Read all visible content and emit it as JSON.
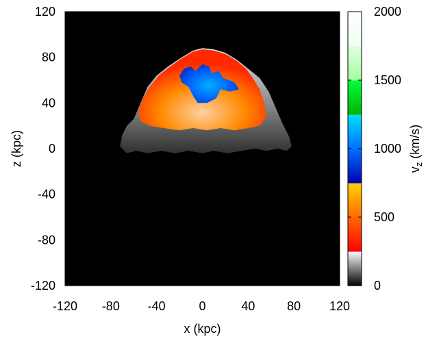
{
  "chart_data": {
    "type": "heatmap",
    "title": "",
    "xlabel": "x (kpc)",
    "ylabel": "z (kpc)",
    "xlim": [
      -120,
      120
    ],
    "ylim": [
      -120,
      120
    ],
    "xticks": [
      -120,
      -80,
      -40,
      0,
      40,
      80,
      120
    ],
    "yticks": [
      -120,
      -80,
      -40,
      0,
      40,
      80,
      120
    ],
    "colorbar": {
      "label_main": "v",
      "label_sub": "z",
      "label_unit": " (km/s)",
      "range": [
        0,
        2000
      ],
      "ticks": [
        0,
        500,
        1000,
        1500,
        2000
      ],
      "bands": [
        {
          "from": 0,
          "to": 250,
          "colors": [
            "#000000",
            "#ffffff"
          ]
        },
        {
          "from": 250,
          "to": 500,
          "colors": [
            "#ff0000",
            "#ff6a00"
          ]
        },
        {
          "from": 500,
          "to": 750,
          "colors": [
            "#ff6a00",
            "#ffd400"
          ]
        },
        {
          "from": 750,
          "to": 1000,
          "colors": [
            "#0000b4",
            "#0070ff"
          ]
        },
        {
          "from": 1000,
          "to": 1250,
          "colors": [
            "#0070ff",
            "#00e0ff"
          ]
        },
        {
          "from": 1250,
          "to": 1500,
          "colors": [
            "#00b400",
            "#00ff40"
          ]
        },
        {
          "from": 1500,
          "to": 1750,
          "colors": [
            "#a0ffa0",
            "#e0ffe0"
          ]
        },
        {
          "from": 1750,
          "to": 2000,
          "colors": [
            "#f0fff0",
            "#ffffff"
          ]
        }
      ]
    },
    "regions": [
      {
        "name": "background",
        "color": "#000000"
      },
      {
        "name": "shell-edge",
        "color": "#aaaaaa",
        "vz_range": [
          0,
          250
        ],
        "outline": [
          [
            -72,
            2
          ],
          [
            -70,
            12
          ],
          [
            -66,
            20
          ],
          [
            -60,
            26
          ],
          [
            -54,
            40
          ],
          [
            -48,
            54
          ],
          [
            -40,
            64
          ],
          [
            -30,
            72
          ],
          [
            -18,
            80
          ],
          [
            -8,
            86
          ],
          [
            0,
            88
          ],
          [
            10,
            87
          ],
          [
            20,
            84
          ],
          [
            30,
            78
          ],
          [
            40,
            70
          ],
          [
            50,
            62
          ],
          [
            58,
            50
          ],
          [
            64,
            36
          ],
          [
            70,
            22
          ],
          [
            76,
            10
          ],
          [
            78,
            2
          ],
          [
            74,
            -2
          ],
          [
            66,
            0
          ],
          [
            56,
            -2
          ],
          [
            46,
            0
          ],
          [
            34,
            -2
          ],
          [
            22,
            -4
          ],
          [
            10,
            -2
          ],
          [
            0,
            -4
          ],
          [
            -12,
            -2
          ],
          [
            -24,
            -4
          ],
          [
            -36,
            -2
          ],
          [
            -48,
            -4
          ],
          [
            -58,
            -2
          ],
          [
            -66,
            -4
          ]
        ]
      },
      {
        "name": "shell-interior",
        "color": "#ff5a00",
        "vz_range": [
          300,
          700
        ],
        "outline": [
          [
            -56,
            32
          ],
          [
            -52,
            44
          ],
          [
            -46,
            54
          ],
          [
            -38,
            64
          ],
          [
            -28,
            72
          ],
          [
            -18,
            79
          ],
          [
            -8,
            85
          ],
          [
            0,
            87
          ],
          [
            10,
            86
          ],
          [
            20,
            83
          ],
          [
            30,
            77
          ],
          [
            38,
            70
          ],
          [
            44,
            62
          ],
          [
            50,
            52
          ],
          [
            54,
            40
          ],
          [
            56,
            28
          ],
          [
            50,
            20
          ],
          [
            40,
            18
          ],
          [
            28,
            16
          ],
          [
            16,
            18
          ],
          [
            4,
            16
          ],
          [
            -8,
            18
          ],
          [
            -20,
            16
          ],
          [
            -34,
            18
          ],
          [
            -46,
            20
          ],
          [
            -54,
            24
          ]
        ]
      },
      {
        "name": "central-jet",
        "color": "#0060ff",
        "vz_range": [
          800,
          1200
        ],
        "outline": [
          [
            -20,
            64
          ],
          [
            -16,
            70
          ],
          [
            -10,
            72
          ],
          [
            -6,
            68
          ],
          [
            0,
            74
          ],
          [
            6,
            72
          ],
          [
            8,
            66
          ],
          [
            14,
            68
          ],
          [
            18,
            62
          ],
          [
            28,
            58
          ],
          [
            32,
            52
          ],
          [
            24,
            50
          ],
          [
            16,
            52
          ],
          [
            12,
            44
          ],
          [
            4,
            40
          ],
          [
            -4,
            40
          ],
          [
            -8,
            46
          ],
          [
            -12,
            54
          ],
          [
            -18,
            58
          ]
        ]
      }
    ]
  }
}
